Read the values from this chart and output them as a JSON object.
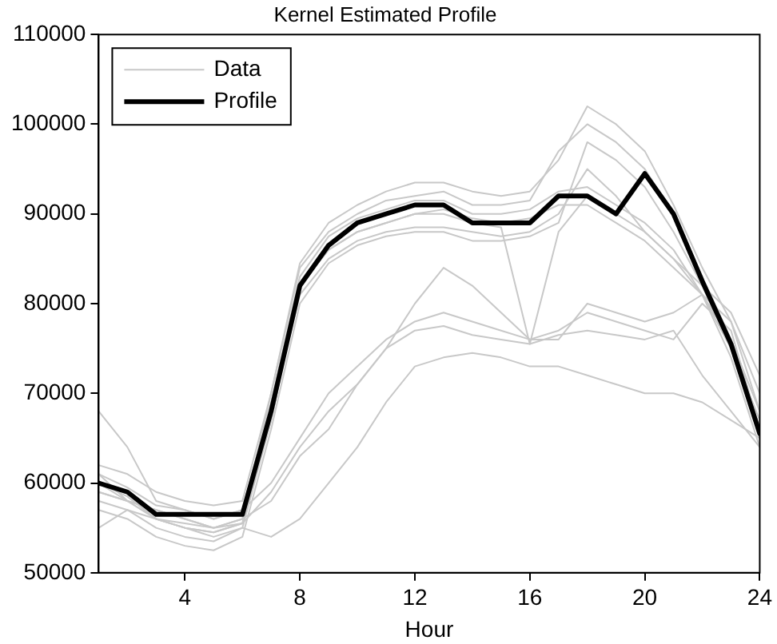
{
  "chart_data": {
    "type": "line",
    "title": "Kernel Estimated Profile",
    "xlabel": "Hour",
    "x": [
      1,
      2,
      3,
      4,
      5,
      6,
      7,
      8,
      9,
      10,
      11,
      12,
      13,
      14,
      15,
      16,
      17,
      18,
      19,
      20,
      21,
      22,
      23,
      24
    ],
    "xlim": [
      1,
      24
    ],
    "xticks": [
      4,
      8,
      12,
      16,
      20,
      24
    ],
    "ylim": [
      50000,
      110000
    ],
    "yticks": [
      50000,
      60000,
      70000,
      80000,
      90000,
      100000,
      110000
    ],
    "grid": false,
    "legend": "top left",
    "marker": "none",
    "line_style": "solid",
    "series": [
      {
        "name": "Data",
        "color": "#c8c8c8",
        "values": [
          60000,
          58500,
          56000,
          55500,
          55000,
          56000,
          70000,
          84000,
          88000,
          90000,
          91500,
          92000,
          92500,
          91000,
          91000,
          91500,
          97000,
          100000,
          98000,
          95000,
          90000,
          83000,
          76000,
          66000
        ]
      },
      {
        "color": "#c8c8c8",
        "values": [
          58000,
          57000,
          55000,
          54000,
          53500,
          55000,
          67000,
          82000,
          86000,
          88000,
          89000,
          90000,
          90500,
          89500,
          89000,
          89500,
          91000,
          91000,
          89000,
          87000,
          84000,
          81000,
          76000,
          68000
        ]
      },
      {
        "color": "#c8c8c8",
        "values": [
          62000,
          61000,
          59000,
          58000,
          57500,
          58000,
          70000,
          84500,
          89000,
          91000,
          92500,
          93500,
          93500,
          92500,
          92000,
          92500,
          96000,
          102000,
          100000,
          97000,
          91000,
          84000,
          78000,
          70000
        ]
      },
      {
        "color": "#c8c8c8",
        "values": [
          59000,
          58000,
          56000,
          55000,
          54500,
          55500,
          68000,
          81000,
          85000,
          87000,
          88000,
          88500,
          88500,
          88000,
          87500,
          88000,
          90000,
          95000,
          92000,
          88000,
          85000,
          82000,
          79000,
          72000
        ]
      },
      {
        "color": "#c8c8c8",
        "values": [
          61000,
          59500,
          57500,
          57000,
          56000,
          57000,
          69000,
          83000,
          87500,
          89500,
          90500,
          91500,
          91500,
          90000,
          90000,
          90500,
          92500,
          93000,
          91000,
          89000,
          86000,
          81000,
          74000,
          64000
        ]
      },
      {
        "color": "#c8c8c8",
        "values": [
          57000,
          56000,
          54000,
          53000,
          52500,
          54000,
          66000,
          80000,
          84500,
          86500,
          87500,
          88000,
          88000,
          87000,
          87000,
          87500,
          89000,
          98000,
          96000,
          93000,
          88000,
          82000,
          75000,
          65000
        ]
      },
      {
        "color": "#c8c8c8",
        "values": [
          68000,
          64000,
          58000,
          57000,
          56000,
          57000,
          60000,
          65000,
          70000,
          73000,
          76000,
          78000,
          79000,
          78000,
          77000,
          76000,
          77000,
          79000,
          78000,
          77000,
          76000,
          80000,
          77000,
          66000
        ]
      },
      {
        "color": "#c8c8c8",
        "values": [
          60000,
          58000,
          57000,
          56000,
          55000,
          55500,
          59000,
          64000,
          68000,
          71000,
          75000,
          80000,
          84000,
          82000,
          79000,
          76000,
          76000,
          80000,
          79000,
          78000,
          79000,
          81000,
          78000,
          68000
        ]
      },
      {
        "color": "#c8c8c8",
        "values": [
          55000,
          57000,
          56000,
          55000,
          54000,
          55000,
          54000,
          56000,
          60000,
          64000,
          69000,
          73000,
          74000,
          74500,
          74000,
          73000,
          73000,
          72000,
          71000,
          70000,
          70000,
          69000,
          67000,
          65000
        ]
      },
      {
        "color": "#c8c8c8",
        "values": [
          61000,
          58000,
          57000,
          56000,
          55000,
          56000,
          58000,
          63000,
          66000,
          71000,
          75000,
          77000,
          77500,
          76500,
          76000,
          75500,
          76500,
          77000,
          76500,
          76000,
          77000,
          72000,
          68000,
          64000
        ]
      },
      {
        "color": "#c8c8c8",
        "values": [
          59000,
          58000,
          56000,
          55000,
          54500,
          55500,
          67000,
          82000,
          86000,
          88000,
          89000,
          90000,
          90000,
          89000,
          88500,
          75500,
          88000,
          92000,
          90000,
          88000,
          85000,
          81000,
          75000,
          67000
        ]
      },
      {
        "name": "Profile",
        "color": "#000000",
        "values": [
          60000,
          59000,
          56500,
          56500,
          56500,
          56500,
          68000,
          82000,
          86500,
          89000,
          90000,
          91000,
          91000,
          89000,
          89000,
          89000,
          92000,
          92000,
          90000,
          94500,
          90000,
          82500,
          75500,
          65500
        ]
      }
    ]
  }
}
